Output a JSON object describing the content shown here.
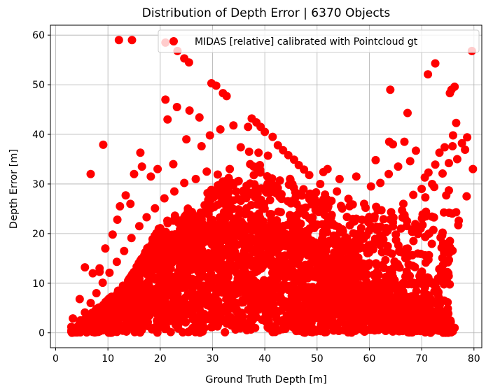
{
  "chart_data": {
    "type": "scatter",
    "title": "Distribution of Depth Error | 6370  Objects",
    "xlabel": "Ground Truth Depth [m]",
    "ylabel": "Depth Error [m]",
    "xlim": [
      -1,
      81.5
    ],
    "ylim": [
      -3,
      62
    ],
    "xticks": [
      0,
      10,
      20,
      30,
      40,
      50,
      60,
      70,
      80
    ],
    "yticks": [
      0,
      10,
      20,
      30,
      40,
      50,
      60
    ],
    "grid": true,
    "legend_position": "top-right",
    "series": [
      {
        "name": "MIDAS [relative] calibrated with Pointcloud gt",
        "color": "#ff0000",
        "points": [
          [
            12.1,
            59.0
          ],
          [
            14.6,
            59.0
          ],
          [
            21.0,
            58.5
          ],
          [
            23.3,
            56.8
          ],
          [
            24.6,
            55.3
          ],
          [
            25.5,
            54.5
          ],
          [
            29.8,
            50.3
          ],
          [
            30.7,
            49.8
          ],
          [
            32.0,
            48.3
          ],
          [
            32.7,
            47.7
          ],
          [
            21.0,
            47.0
          ],
          [
            23.2,
            45.5
          ],
          [
            25.6,
            44.8
          ],
          [
            21.4,
            43.0
          ],
          [
            27.5,
            43.4
          ],
          [
            31.5,
            41.0
          ],
          [
            34.0,
            41.8
          ],
          [
            37.5,
            43.2
          ],
          [
            38.4,
            42.4
          ],
          [
            36.8,
            41.5
          ],
          [
            39.2,
            41.5
          ],
          [
            40.0,
            40.5
          ],
          [
            41.5,
            39.5
          ],
          [
            42.5,
            37.8
          ],
          [
            43.5,
            36.8
          ],
          [
            44.5,
            35.8
          ],
          [
            45.6,
            34.9
          ],
          [
            46.5,
            33.8
          ],
          [
            47.5,
            32.9
          ],
          [
            48.5,
            31.8
          ],
          [
            37.0,
            36.5
          ],
          [
            38.8,
            36.3
          ],
          [
            40.6,
            35.7
          ],
          [
            35.4,
            37.4
          ],
          [
            33.3,
            33.0
          ],
          [
            32.0,
            30.5
          ],
          [
            25.0,
            39.0
          ],
          [
            27.9,
            37.6
          ],
          [
            29.5,
            39.8
          ],
          [
            22.5,
            34.0
          ],
          [
            19.5,
            33.0
          ],
          [
            18.2,
            31.5
          ],
          [
            16.5,
            33.5
          ],
          [
            16.2,
            36.3
          ],
          [
            15.0,
            32.0
          ],
          [
            9.1,
            37.9
          ],
          [
            6.7,
            32.0
          ],
          [
            12.3,
            25.5
          ],
          [
            13.4,
            27.7
          ],
          [
            14.3,
            26.0
          ],
          [
            11.8,
            22.8
          ],
          [
            10.9,
            19.8
          ],
          [
            9.5,
            17.0
          ],
          [
            8.4,
            13.0
          ],
          [
            5.6,
            13.2
          ],
          [
            7.1,
            12.0
          ],
          [
            8.4,
            12.3
          ],
          [
            4.6,
            6.8
          ],
          [
            3.3,
            2.9
          ],
          [
            3.0,
            1.2
          ],
          [
            4.1,
            0.7
          ],
          [
            61.2,
            34.8
          ],
          [
            63.8,
            38.5
          ],
          [
            64.5,
            38.0
          ],
          [
            66.7,
            38.5
          ],
          [
            68.9,
            36.7
          ],
          [
            67.8,
            34.6
          ],
          [
            65.5,
            33.5
          ],
          [
            63.7,
            32.0
          ],
          [
            62.1,
            30.2
          ],
          [
            60.3,
            29.5
          ],
          [
            59.0,
            26.0
          ],
          [
            57.5,
            31.5
          ],
          [
            56.0,
            27.0
          ],
          [
            54.3,
            31.0
          ],
          [
            53.8,
            28.5
          ],
          [
            52.0,
            33.0
          ],
          [
            51.2,
            32.4
          ],
          [
            50.6,
            30.0
          ],
          [
            49.8,
            28.3
          ],
          [
            57.5,
            23.0
          ],
          [
            59.6,
            22.8
          ],
          [
            61.3,
            25.4
          ],
          [
            62.3,
            24.7
          ],
          [
            66.5,
            26.0
          ],
          [
            67.2,
            22.5
          ],
          [
            68.4,
            27.8
          ],
          [
            70.0,
            29.0
          ],
          [
            70.7,
            27.3
          ],
          [
            72.0,
            30.0
          ],
          [
            72.4,
            29.4
          ],
          [
            64.0,
            49.0
          ],
          [
            67.3,
            44.3
          ],
          [
            71.2,
            52.1
          ],
          [
            72.6,
            54.3
          ],
          [
            75.4,
            48.3
          ],
          [
            75.7,
            49.0
          ],
          [
            76.3,
            49.6
          ],
          [
            76.6,
            42.3
          ],
          [
            76.0,
            39.8
          ],
          [
            75.9,
            37.6
          ],
          [
            74.4,
            37.4
          ],
          [
            73.4,
            36.3
          ],
          [
            72.6,
            33.9
          ],
          [
            71.3,
            32.3
          ],
          [
            70.6,
            31.3
          ],
          [
            74.0,
            32.1
          ],
          [
            75.2,
            34.2
          ],
          [
            76.8,
            35.0
          ],
          [
            77.7,
            38.2
          ],
          [
            78.3,
            36.9
          ],
          [
            78.7,
            39.4
          ],
          [
            79.8,
            33.0
          ],
          [
            79.6,
            56.8
          ],
          [
            75.2,
            28.7
          ],
          [
            74.7,
            27.7
          ],
          [
            76.6,
            24.3
          ],
          [
            78.6,
            27.5
          ],
          [
            77.0,
            21.7
          ],
          [
            77.1,
            22.6
          ],
          [
            75.4,
            18.5
          ],
          [
            74.0,
            20.2
          ],
          [
            74.3,
            16.1
          ],
          [
            75.0,
            14.2
          ],
          [
            75.1,
            12.0
          ],
          [
            73.2,
            10.5
          ],
          [
            73.0,
            8.5
          ],
          [
            74.3,
            6.5
          ],
          [
            75.0,
            4.9
          ],
          [
            75.5,
            2.5
          ],
          [
            76.3,
            1.0
          ],
          [
            72.5,
            2.5
          ],
          [
            71.5,
            3.7
          ],
          [
            70.3,
            6.3
          ],
          [
            69.0,
            8.4
          ],
          [
            68.4,
            10.1
          ],
          [
            67.5,
            13.8
          ],
          [
            66.3,
            16.2
          ],
          [
            65.1,
            18.7
          ],
          [
            63.5,
            20.6
          ],
          [
            62.1,
            19.7
          ],
          [
            60.9,
            18.1
          ],
          [
            58.7,
            17.2
          ],
          [
            57.5,
            15.2
          ],
          [
            56.2,
            17.6
          ],
          [
            55.0,
            18.5
          ],
          [
            53.2,
            19.6
          ],
          [
            51.9,
            20.3
          ],
          [
            50.1,
            21.8
          ],
          [
            48.5,
            23.1
          ],
          [
            46.7,
            24.9
          ],
          [
            45.0,
            26.1
          ],
          [
            43.2,
            27.0
          ],
          [
            41.2,
            28.4
          ],
          [
            39.3,
            29.1
          ],
          [
            37.2,
            30.1
          ],
          [
            35.0,
            30.6
          ],
          [
            33.1,
            31.2
          ],
          [
            31.0,
            31.9
          ],
          [
            28.9,
            32.5
          ],
          [
            26.8,
            31.0
          ],
          [
            24.6,
            30.2
          ],
          [
            22.7,
            28.5
          ],
          [
            20.8,
            27.1
          ],
          [
            19.0,
            25.1
          ],
          [
            17.4,
            23.3
          ],
          [
            16.0,
            21.5
          ],
          [
            14.5,
            19.1
          ],
          [
            13.1,
            16.5
          ],
          [
            11.7,
            14.3
          ],
          [
            10.3,
            12.1
          ],
          [
            9.0,
            10.1
          ],
          [
            7.8,
            8.0
          ],
          [
            6.7,
            6.0
          ],
          [
            5.6,
            4.1
          ],
          [
            4.7,
            2.5
          ]
        ]
      }
    ]
  }
}
